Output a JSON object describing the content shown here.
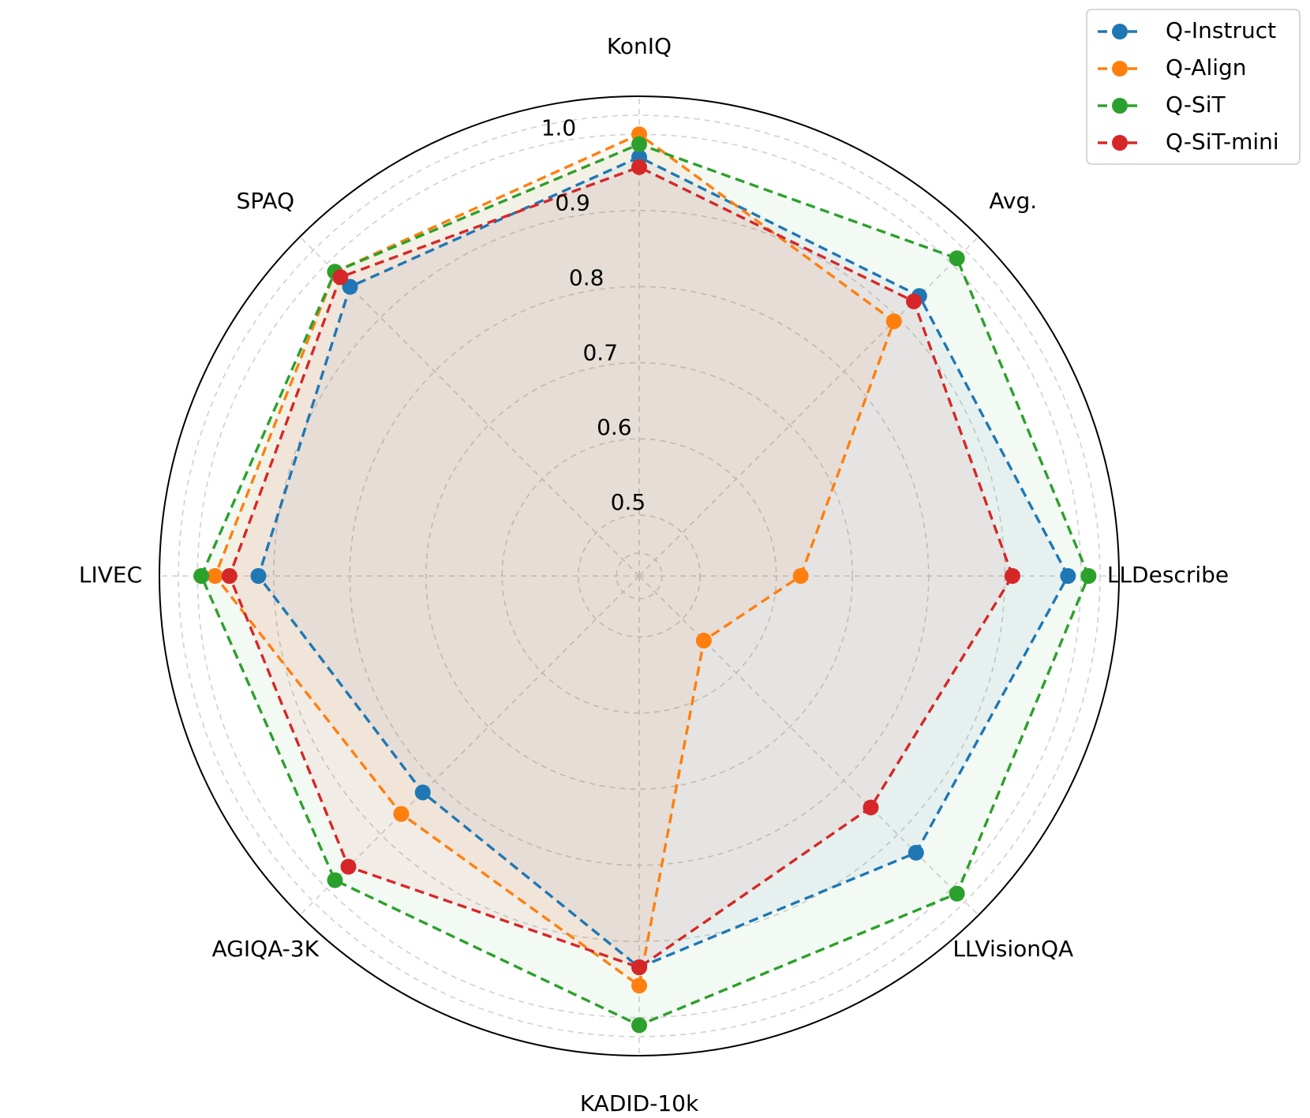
{
  "chart_data": {
    "type": "radar",
    "axes": [
      "LLDescribe",
      "Avg.",
      "KonIQ",
      "SPAQ",
      "LIVEC",
      "AGIQA-3K",
      "KADID-10k",
      "LLVisionQA"
    ],
    "rlim": [
      0.42,
      1.05
    ],
    "ticks": [
      0.5,
      0.6,
      0.7,
      0.8,
      0.9,
      1.0
    ],
    "tick_labels": [
      "0.5",
      "0.6",
      "0.7",
      "0.8",
      "0.9",
      "1.0"
    ],
    "grid": true,
    "legend_position": "top-right",
    "series": [
      {
        "name": "Q-Instruct",
        "color": "#1f77b4",
        "values": [
          0.983,
          0.94,
          0.97,
          0.957,
          0.92,
          0.822,
          0.934,
          0.934
        ]
      },
      {
        "name": "Q-Align",
        "color": "#ff7f0e",
        "values": [
          0.632,
          0.893,
          1.0,
          0.985,
          0.977,
          0.862,
          0.958,
          0.54
        ]
      },
      {
        "name": "Q-SiT",
        "color": "#2ca02c",
        "values": [
          1.01,
          1.01,
          0.987,
          0.985,
          0.995,
          0.985,
          1.01,
          1.01
        ]
      },
      {
        "name": "Q-SiT-mini",
        "color": "#d62728",
        "values": [
          0.91,
          0.93,
          0.957,
          0.975,
          0.958,
          0.96,
          0.934,
          0.85
        ]
      }
    ]
  }
}
